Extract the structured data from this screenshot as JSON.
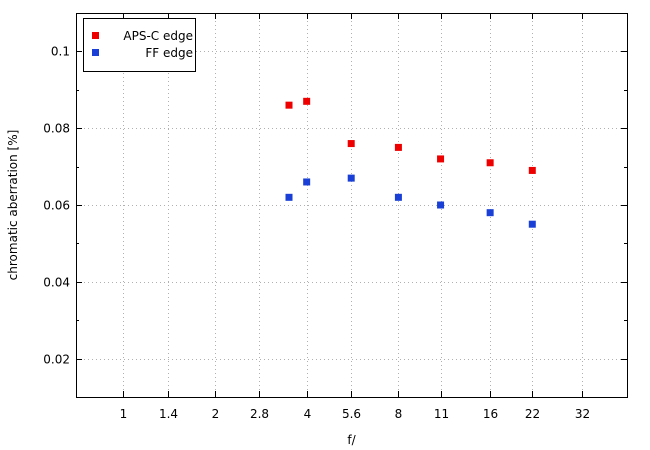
{
  "chart_data": {
    "type": "scatter",
    "xlabel": "f/",
    "ylabel": "chromatic  aberration [%]",
    "x_scale": "log2",
    "x_ticks": [
      1,
      1.4,
      2,
      2.8,
      4,
      5.6,
      8,
      11,
      16,
      22,
      32
    ],
    "x_tick_labels": [
      "1",
      "1.4",
      "2",
      "2.8",
      "4",
      "5.6",
      "8",
      "11",
      "16",
      "22",
      "32"
    ],
    "xlim": [
      0.7,
      45
    ],
    "ylim": [
      0.01,
      0.11
    ],
    "y_ticks": [
      0.02,
      0.04,
      0.06,
      0.08,
      0.1
    ],
    "y_tick_labels": [
      "0.02",
      "0.04",
      "0.06",
      "0.08",
      "0.1"
    ],
    "grid": true,
    "legend_position": "top-left",
    "series": [
      {
        "name": "APS-C edge",
        "color": "#ee0000",
        "x": [
          3.5,
          4,
          5.6,
          8,
          11,
          16,
          22
        ],
        "y": [
          0.086,
          0.087,
          0.076,
          0.075,
          0.072,
          0.071,
          0.069
        ]
      },
      {
        "name": "FF edge",
        "color": "#1a3fd6",
        "x": [
          3.5,
          4,
          5.6,
          8,
          11,
          16,
          22
        ],
        "y": [
          0.062,
          0.066,
          0.067,
          0.062,
          0.06,
          0.058,
          0.055
        ]
      }
    ]
  }
}
